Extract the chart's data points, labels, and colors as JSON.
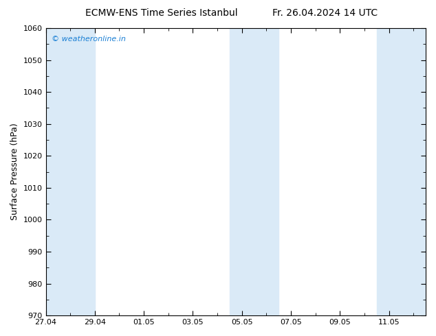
{
  "title_left": "ECMW-ENS Time Series Istanbul",
  "title_right": "Fr. 26.04.2024 14 UTC",
  "ylabel": "Surface Pressure (hPa)",
  "ylim": [
    970,
    1060
  ],
  "ytick_major_step": 10,
  "ytick_minor_step": 5,
  "background_color": "#ffffff",
  "watermark": "© weatheronline.in",
  "watermark_color": "#1a7fd4",
  "x_tick_labels": [
    "27.04",
    "29.04",
    "01.05",
    "03.05",
    "05.05",
    "07.05",
    "09.05",
    "11.05"
  ],
  "x_tick_positions": [
    0,
    2,
    4,
    6,
    8,
    10,
    12,
    14
  ],
  "x_min": 0,
  "x_max": 15.5,
  "shaded_color": "#daeaf7",
  "shaded_bands": [
    [
      0.0,
      1.0
    ],
    [
      1.0,
      2.0
    ],
    [
      7.5,
      8.5
    ],
    [
      8.5,
      9.5
    ],
    [
      13.5,
      14.5
    ],
    [
      14.5,
      15.5
    ]
  ],
  "figsize": [
    6.34,
    4.9
  ],
  "dpi": 100
}
